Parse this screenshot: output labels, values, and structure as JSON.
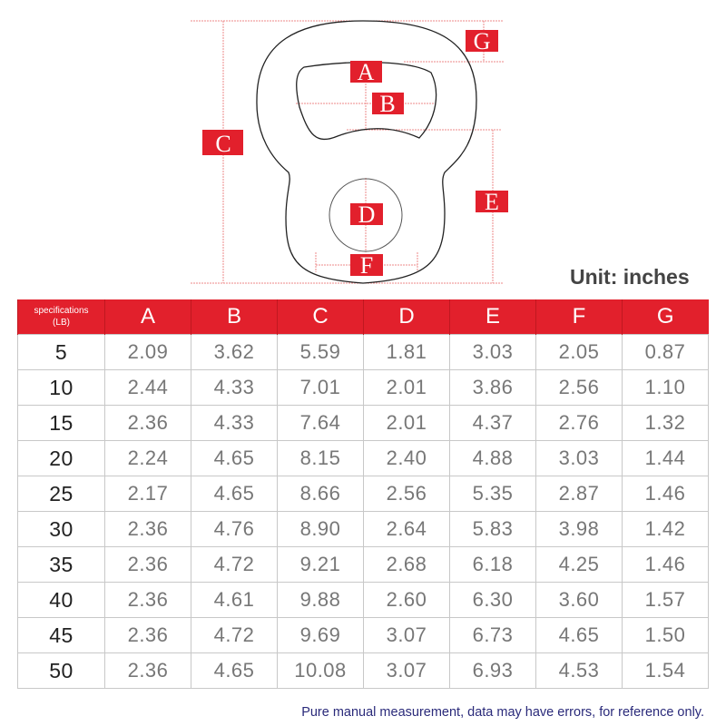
{
  "diagram": {
    "labels": [
      "A",
      "B",
      "C",
      "D",
      "E",
      "F",
      "G"
    ],
    "label_color": "#e2202c"
  },
  "unit_label": "Unit: inches",
  "table": {
    "header_first": "specifications",
    "header_first_sub": "(LB)",
    "columns": [
      "A",
      "B",
      "C",
      "D",
      "E",
      "F",
      "G"
    ],
    "rows": [
      [
        "5",
        "2.09",
        "3.62",
        "5.59",
        "1.81",
        "3.03",
        "2.05",
        "0.87"
      ],
      [
        "10",
        "2.44",
        "4.33",
        "7.01",
        "2.01",
        "3.86",
        "2.56",
        "1.10"
      ],
      [
        "15",
        "2.36",
        "4.33",
        "7.64",
        "2.01",
        "4.37",
        "2.76",
        "1.32"
      ],
      [
        "20",
        "2.24",
        "4.65",
        "8.15",
        "2.40",
        "4.88",
        "3.03",
        "1.44"
      ],
      [
        "25",
        "2.17",
        "4.65",
        "8.66",
        "2.56",
        "5.35",
        "2.87",
        "1.46"
      ],
      [
        "30",
        "2.36",
        "4.76",
        "8.90",
        "2.64",
        "5.83",
        "3.98",
        "1.42"
      ],
      [
        "35",
        "2.36",
        "4.72",
        "9.21",
        "2.68",
        "6.18",
        "4.25",
        "1.46"
      ],
      [
        "40",
        "2.36",
        "4.61",
        "9.88",
        "2.60",
        "6.30",
        "3.60",
        "1.57"
      ],
      [
        "45",
        "2.36",
        "4.72",
        "9.69",
        "3.07",
        "6.73",
        "4.65",
        "1.50"
      ],
      [
        "50",
        "2.36",
        "4.65",
        "10.08",
        "3.07",
        "6.93",
        "4.53",
        "1.54"
      ]
    ]
  },
  "note": "Pure manual measurement, data may have errors, for reference only."
}
